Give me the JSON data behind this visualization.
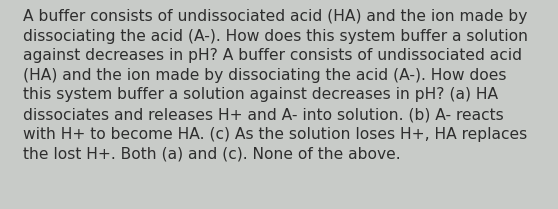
{
  "lines": [
    "A buffer consists of undissociated acid (HA) and the ion made by",
    "dissociating the acid (A-). How does this system buffer a solution",
    "against decreases in pH? A buffer consists of undissociated acid",
    "(HA) and the ion made by dissociating the acid (A-). How does",
    "this system buffer a solution against decreases in pH? (a) HA",
    "dissociates and releases H+ and A- into solution. (b) A- reacts",
    "with H+ to become HA. (c) As the solution loses H+, HA replaces",
    "the lost H+. Both (a) and (c). None of the above."
  ],
  "background_color": "#c8cbc8",
  "text_color": "#2e2e2e",
  "font_size": 11.2,
  "fig_width": 5.58,
  "fig_height": 2.09,
  "dpi": 100
}
